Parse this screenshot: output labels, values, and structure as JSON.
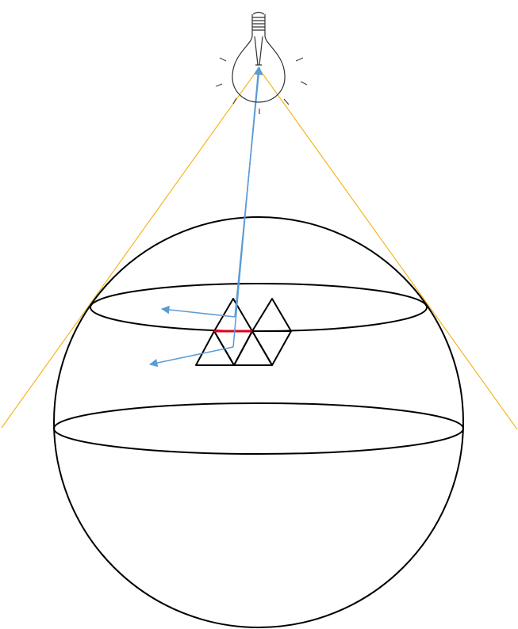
{
  "colors": {
    "background": "#ffffff",
    "outline": "#000000",
    "light_cone": "#f2b81c",
    "normal_arrows": "#5b9bd5",
    "highlighted_edge": "#e0001b"
  },
  "icons": {
    "light_source": "light-bulb-icon"
  },
  "labels": {}
}
